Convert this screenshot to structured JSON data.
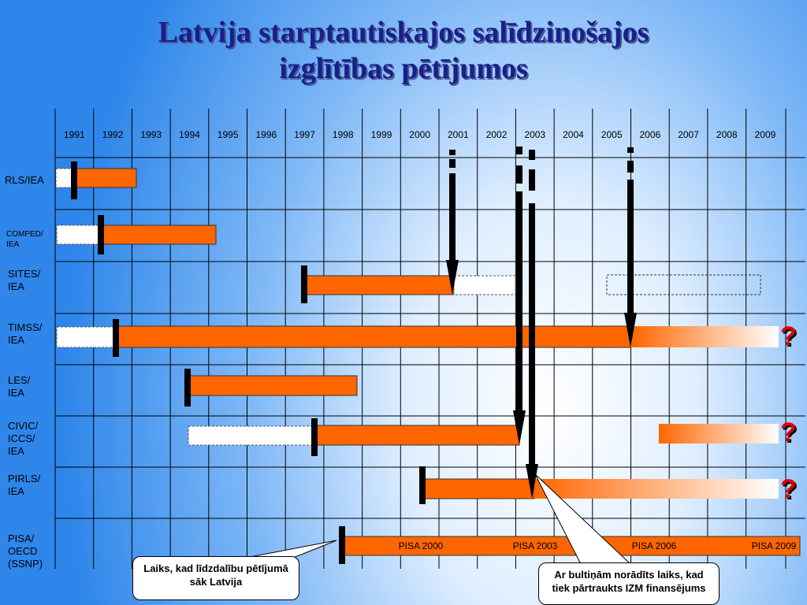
{
  "title_line1": "Latvija starptautiskajos salīdzinošajos",
  "title_line2": "izglītības pētījumos",
  "years": [
    "1991",
    "1992",
    "1993",
    "1994",
    "1995",
    "1996",
    "1997",
    "1998",
    "1999",
    "2000",
    "2001",
    "2002",
    "2003",
    "2004",
    "2005",
    "2006",
    "2007",
    "2008",
    "2009"
  ],
  "studies": [
    {
      "label": "RLS/IEA"
    },
    {
      "label": "COMPED/\nIEA"
    },
    {
      "label": "SITES/\nIEA"
    },
    {
      "label": "TIMSS/\nIEA"
    },
    {
      "label": "LES/\nIEA"
    },
    {
      "label": "CIVIC/\nICCS/\nIEA"
    },
    {
      "label": "PIRLS/\nIEA"
    },
    {
      "label": "PISA/\nOECD\n(SSNP)"
    }
  ],
  "pisa_cycles": [
    "PISA 2000",
    "PISA 2003",
    "PISA 2006",
    "PISA 2009"
  ],
  "question_mark": "?",
  "callout_start": "Laiks, kad līdzdalību pētījumā sāk Latvija",
  "callout_arrows": "Ar bultiņām norādīts laiks, kad tiek pārtraukts IZM finansējums",
  "colors": {
    "bar": "#ff6600",
    "title": "#1a1f8a",
    "question": "#e00000"
  }
}
